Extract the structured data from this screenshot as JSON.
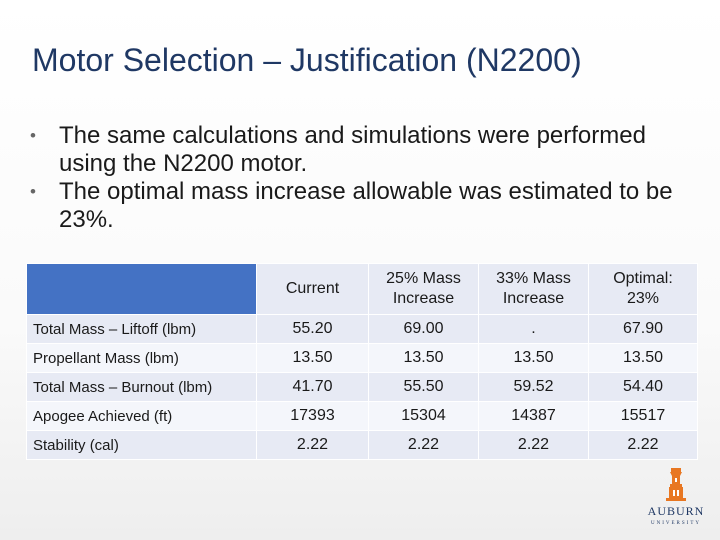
{
  "slide": {
    "title": "Motor Selection – Justification (N2200)",
    "bullets": [
      "The same calculations and simulations were performed using the N2200 motor.",
      "The optimal mass increase allowable was estimated to be 23%."
    ],
    "bullet_glyph": "•"
  },
  "table": {
    "header": {
      "corner": "",
      "current": "Current",
      "mass25": [
        "25% Mass",
        "Increase"
      ],
      "mass33": [
        "33% Mass",
        "Increase"
      ],
      "optimal": [
        "Optimal:",
        "23%"
      ]
    },
    "rows": [
      {
        "label": "Total Mass – Liftoff (lbm)",
        "values": [
          "55.20",
          "69.00",
          ".",
          "67.90"
        ]
      },
      {
        "label": "Propellant Mass (lbm)",
        "values": [
          "13.50",
          "13.50",
          "13.50",
          "13.50"
        ]
      },
      {
        "label": "Total Mass – Burnout (lbm)",
        "values": [
          "41.70",
          "55.50",
          "59.52",
          "54.40"
        ]
      },
      {
        "label": "Apogee Achieved (ft)",
        "values": [
          "17393",
          "15304",
          "14387",
          "15517"
        ]
      },
      {
        "label": "Stability (cal)",
        "values": [
          "2.22",
          "2.22",
          "2.22",
          "2.22"
        ]
      }
    ]
  },
  "logo": {
    "icon": "tower-icon",
    "word": "AUBURN",
    "sub": "UNIVERSITY",
    "color": "#1f3864",
    "accent": "#e87722"
  },
  "colors": {
    "title": "#1f3864",
    "table_corner": "#4472c4",
    "table_band_dark": "#e7eaf4",
    "table_band_light": "#f4f6fb"
  }
}
